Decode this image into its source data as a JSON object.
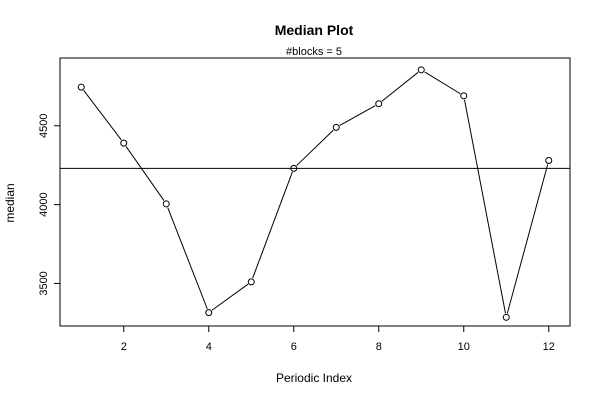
{
  "chart_data": {
    "type": "line",
    "title": "Median Plot",
    "subtitle": "#blocks =  5",
    "xlabel": "Periodic Index",
    "ylabel": "median",
    "xlim": [
      0.5,
      12.5
    ],
    "ylim": [
      3230,
      4930
    ],
    "x_ticks": [
      2,
      4,
      6,
      8,
      10,
      12
    ],
    "y_ticks": [
      3500,
      4000,
      4500
    ],
    "reference_line": 4230,
    "grid": false,
    "legend": "none",
    "series": [
      {
        "x": [
          1,
          2,
          3,
          4,
          5,
          6,
          7,
          8,
          9,
          10,
          11,
          12
        ],
        "values": [
          4745,
          4390,
          4005,
          3315,
          3510,
          4230,
          4490,
          4640,
          4855,
          4690,
          3285,
          4280
        ]
      }
    ]
  }
}
